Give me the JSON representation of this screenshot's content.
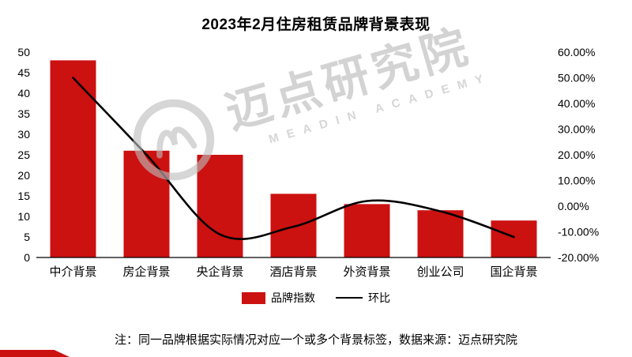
{
  "title": "2023年2月住房租赁品牌背景表现",
  "chart_data": {
    "type": "bar",
    "subtype": "combo-bar-line-dual-axis",
    "categories": [
      "中介背景",
      "房企背景",
      "央企背景",
      "酒店背景",
      "外资背景",
      "创业公司",
      "国企背景"
    ],
    "series": [
      {
        "name": "品牌指数",
        "type": "bar",
        "axis": "left",
        "color": "#cc1111",
        "values": [
          48,
          26,
          25,
          15.5,
          13,
          11.5,
          9
        ]
      },
      {
        "name": "环比",
        "type": "line",
        "axis": "right",
        "color": "#000000",
        "values_percent": [
          50,
          20,
          -11,
          -8,
          2,
          -2,
          -12
        ]
      }
    ],
    "left_axis": {
      "min": 0,
      "max": 50,
      "tick_values": [
        0,
        5,
        10,
        15,
        20,
        25,
        30,
        35,
        40,
        45,
        50
      ],
      "tick_labels": [
        "0",
        "5",
        "10",
        "15",
        "20",
        "25",
        "30",
        "35",
        "40",
        "45",
        "50"
      ]
    },
    "right_axis": {
      "min": -20,
      "max": 60,
      "tick_values": [
        60,
        50,
        40,
        30,
        20,
        10,
        0,
        -10,
        -20
      ],
      "tick_labels": [
        "60.00%",
        "50.00%",
        "40.00%",
        "30.00%",
        "20.00%",
        "10.00%",
        "0.00%",
        "-10.00%",
        "-20.00%"
      ]
    },
    "grid": false,
    "legend_position": "bottom"
  },
  "legend": {
    "bar_label": "品牌指数",
    "line_label": "环比"
  },
  "note": "注：同一品牌根据实际情况对应一个或多个背景标签，数据来源：迈点研究院",
  "watermark": {
    "text": "迈点研究院",
    "subtext": "MEADIN ACADEMY"
  },
  "colors": {
    "bar": "#cc1111",
    "line": "#000000"
  }
}
